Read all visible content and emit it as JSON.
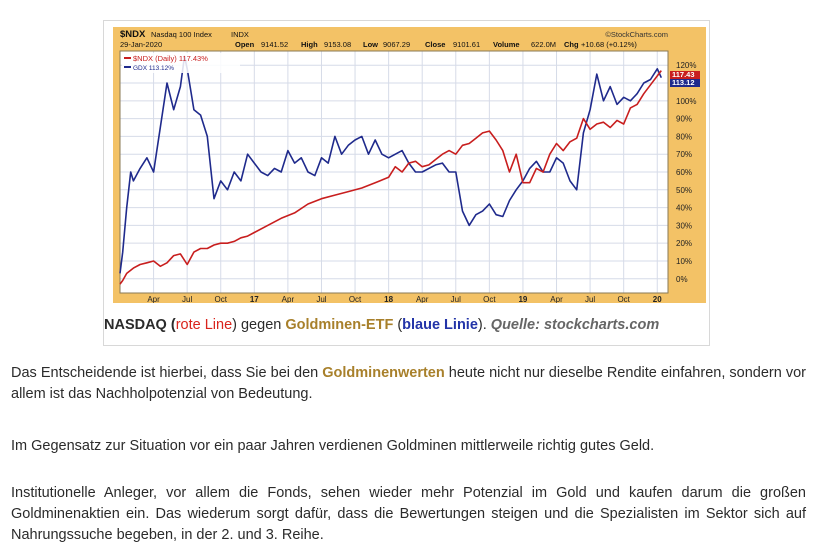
{
  "chart_data": {
    "type": "line",
    "ticker": "$NDX",
    "index_name": "Nasdaq 100 Index",
    "exchange": "INDX",
    "date": "29-Jan-2020",
    "watermark": "©StockCharts.com",
    "quote": {
      "open_label": "Open",
      "open": "9141.52",
      "high_label": "High",
      "high": "9153.08",
      "low_label": "Low",
      "low": "9067.29",
      "close_label": "Close",
      "close": "9101.61",
      "volume_label": "Volume",
      "volume": "622.0M",
      "chg_label": "Chg",
      "chg": "+10.68 (+0.12%)"
    },
    "x_tick_labels": [
      "Apr",
      "Jul",
      "Oct",
      "17",
      "Apr",
      "Jul",
      "Oct",
      "18",
      "Apr",
      "Jul",
      "Oct",
      "19",
      "Apr",
      "Jul",
      "Oct",
      "20"
    ],
    "x_tick_positions": [
      0.25,
      0.5,
      0.75,
      1.0,
      1.25,
      1.5,
      1.75,
      2.0,
      2.25,
      2.5,
      2.75,
      3.0,
      3.25,
      3.5,
      3.75,
      4.0
    ],
    "x_range": [
      0,
      4.08
    ],
    "y_ticks": [
      0,
      10,
      20,
      30,
      40,
      50,
      60,
      70,
      80,
      90,
      100,
      110,
      120
    ],
    "y_tick_labels": [
      "0%",
      "10%",
      "20%",
      "30%",
      "40%",
      "50%",
      "60%",
      "70%",
      "80%",
      "90%",
      "100%",
      "110%",
      "120%"
    ],
    "y_range": [
      -8,
      128
    ],
    "grid": true,
    "legend_position": "top-left",
    "series": [
      {
        "name": "$NDX (Daily) 117.43%",
        "end_label": "117.43",
        "color": "#c81e1e",
        "x": [
          0.0,
          0.02,
          0.05,
          0.1,
          0.15,
          0.2,
          0.25,
          0.3,
          0.35,
          0.4,
          0.45,
          0.5,
          0.55,
          0.6,
          0.65,
          0.7,
          0.75,
          0.8,
          0.85,
          0.9,
          0.95,
          1.0,
          1.1,
          1.2,
          1.3,
          1.4,
          1.5,
          1.6,
          1.7,
          1.8,
          1.9,
          2.0,
          2.05,
          2.1,
          2.15,
          2.2,
          2.25,
          2.3,
          2.35,
          2.4,
          2.45,
          2.5,
          2.55,
          2.6,
          2.65,
          2.7,
          2.75,
          2.8,
          2.85,
          2.9,
          2.95,
          3.0,
          3.05,
          3.1,
          3.15,
          3.2,
          3.25,
          3.3,
          3.35,
          3.4,
          3.45,
          3.5,
          3.55,
          3.6,
          3.65,
          3.7,
          3.75,
          3.8,
          3.85,
          3.9,
          3.95,
          4.0,
          4.03
        ],
        "y": [
          -3,
          -1,
          3,
          6,
          8,
          9,
          10,
          7,
          9,
          13,
          14,
          8,
          15,
          17,
          17,
          19,
          20,
          20,
          21,
          23,
          24,
          26,
          30,
          34,
          37,
          42,
          45,
          47,
          49,
          51,
          54,
          57,
          63,
          60,
          65,
          66,
          63,
          64,
          67,
          70,
          72,
          70,
          75,
          76,
          79,
          82,
          83,
          78,
          72,
          60,
          70,
          54,
          54,
          62,
          60,
          70,
          76,
          72,
          77,
          79,
          90,
          84,
          87,
          88,
          85,
          89,
          87,
          96,
          98,
          104,
          109,
          114,
          117
        ]
      },
      {
        "name": "GDX 113.12%",
        "end_label": "113.12",
        "color": "#1f2a8c",
        "x": [
          0.0,
          0.02,
          0.05,
          0.08,
          0.1,
          0.15,
          0.2,
          0.25,
          0.3,
          0.35,
          0.4,
          0.45,
          0.48,
          0.5,
          0.55,
          0.6,
          0.65,
          0.7,
          0.75,
          0.8,
          0.85,
          0.9,
          0.95,
          1.0,
          1.05,
          1.1,
          1.15,
          1.2,
          1.25,
          1.3,
          1.35,
          1.4,
          1.45,
          1.5,
          1.55,
          1.6,
          1.65,
          1.7,
          1.75,
          1.8,
          1.85,
          1.9,
          1.95,
          2.0,
          2.05,
          2.1,
          2.15,
          2.2,
          2.25,
          2.3,
          2.35,
          2.4,
          2.45,
          2.5,
          2.55,
          2.6,
          2.65,
          2.7,
          2.75,
          2.8,
          2.85,
          2.9,
          2.95,
          3.0,
          3.05,
          3.1,
          3.15,
          3.2,
          3.25,
          3.3,
          3.35,
          3.4,
          3.45,
          3.5,
          3.55,
          3.6,
          3.65,
          3.7,
          3.75,
          3.8,
          3.85,
          3.9,
          3.95,
          4.0,
          4.03
        ],
        "y": [
          3,
          15,
          40,
          60,
          55,
          62,
          68,
          60,
          85,
          110,
          95,
          108,
          125,
          118,
          95,
          92,
          80,
          45,
          55,
          50,
          60,
          55,
          70,
          65,
          60,
          58,
          62,
          60,
          72,
          65,
          68,
          60,
          58,
          68,
          65,
          80,
          70,
          75,
          78,
          80,
          70,
          78,
          70,
          68,
          70,
          72,
          65,
          60,
          60,
          62,
          64,
          65,
          60,
          60,
          38,
          30,
          36,
          38,
          42,
          36,
          35,
          44,
          50,
          55,
          62,
          66,
          60,
          60,
          68,
          65,
          55,
          50,
          82,
          95,
          115,
          100,
          108,
          98,
          102,
          100,
          104,
          110,
          112,
          118,
          113
        ]
      }
    ]
  },
  "caption": {
    "part1": "NASDAQ (",
    "red": "rote Line",
    "part2": ") gegen ",
    "gold": "Goldminen-ETF",
    "part3": " (",
    "blue": "blaue Linie",
    "part4": "). ",
    "source": "Quelle: stockcharts.com"
  },
  "paragraphs": {
    "p1_before": "Das Entscheidende ist hierbei, dass Sie bei den ",
    "p1_link": "Goldminenwerten",
    "p1_after": " heute nicht nur dieselbe Rendite einfahren, sondern vor allem ist das Nachholpotenzial von Bedeutung.",
    "p2": "Im Gegensatz zur Situation vor ein paar Jahren verdienen Goldminen mittlerweile richtig gutes Geld.",
    "p3": "Institutionelle Anleger, vor allem die Fonds, sehen wieder mehr Potenzial im Gold und kaufen darum die großen Goldminenaktien ein. Das wiederum sorgt dafür, dass die Bewertungen steigen und die Spezialisten im Sektor sich auf Nahrungssuche begeben, in der 2. und 3. Reihe."
  }
}
